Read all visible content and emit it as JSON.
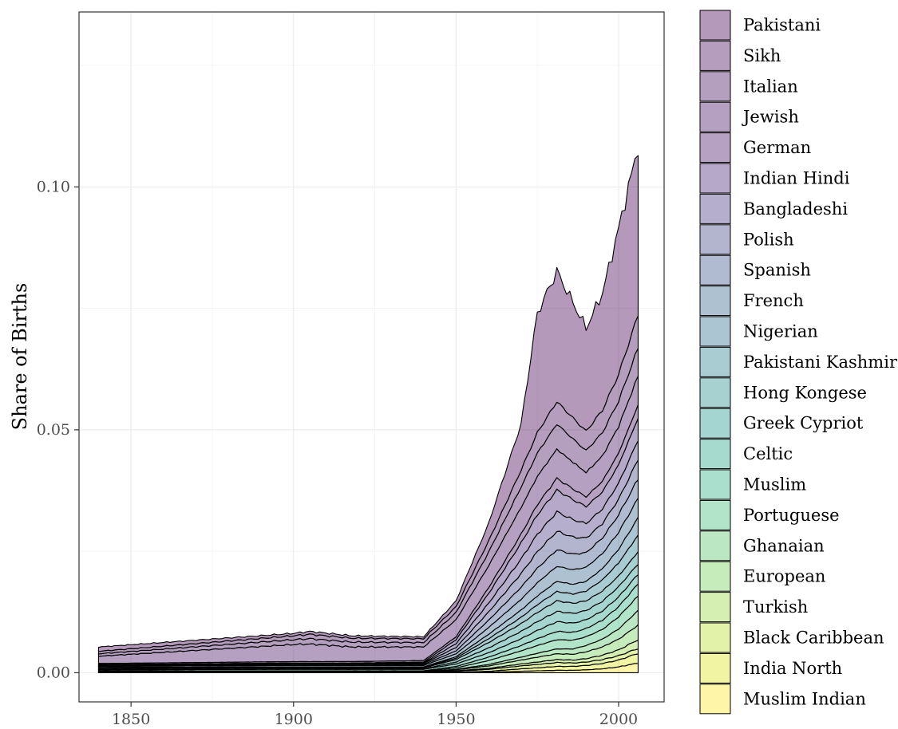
{
  "chart_data": {
    "type": "area",
    "stacked": true,
    "title": "",
    "xlabel": "",
    "ylabel": "Share of Births",
    "xlim": [
      1834,
      2014
    ],
    "ylim": [
      -0.006,
      0.136
    ],
    "x_ticks": [
      1850,
      1900,
      1950,
      2000
    ],
    "y_ticks": [
      0.0,
      0.05,
      0.1
    ],
    "y_tick_labels": [
      "0.00",
      "0.05",
      "0.10"
    ],
    "grid": true,
    "legend_position": "right",
    "key_years": [
      1840,
      1900,
      1905,
      1918,
      1940,
      1950,
      1960,
      1970,
      1975,
      1981,
      1986,
      1990,
      1995,
      2000,
      2006
    ],
    "series": [
      {
        "name": "Muslim Indian",
        "color": "#FDE725",
        "values": [
          0,
          0,
          0,
          0,
          0,
          0,
          0.0001,
          0.0003,
          0.0004,
          0.0005,
          0.0005,
          0.0006,
          0.0008,
          0.0012,
          0.002
        ]
      },
      {
        "name": "India North",
        "color": "#DCE319",
        "values": [
          0,
          0,
          0,
          0,
          0,
          0.0001,
          0.0002,
          0.0005,
          0.0006,
          0.0008,
          0.0008,
          0.0009,
          0.0011,
          0.0014,
          0.002
        ]
      },
      {
        "name": "Black Caribbean",
        "color": "#B8DE29",
        "values": [
          0.0001,
          0.0001,
          0.0001,
          0.0001,
          0.0001,
          0.0002,
          0.0004,
          0.0006,
          0.0007,
          0.0008,
          0.0007,
          0.0007,
          0.0008,
          0.0009,
          0.001
        ]
      },
      {
        "name": "Turkish",
        "color": "#95D840",
        "values": [
          0,
          0,
          0,
          0,
          0,
          0.0001,
          0.0002,
          0.0004,
          0.0005,
          0.0006,
          0.0006,
          0.0007,
          0.0009,
          0.0012,
          0.0018
        ]
      },
      {
        "name": "European",
        "color": "#73D055",
        "values": [
          0.0001,
          0.0001,
          0.0001,
          0.0001,
          0.0001,
          0.0002,
          0.0005,
          0.0008,
          0.001,
          0.0012,
          0.0012,
          0.0014,
          0.0017,
          0.0022,
          0.003
        ]
      },
      {
        "name": "Ghanaian",
        "color": "#55C667",
        "values": [
          0,
          0,
          0,
          0,
          0,
          0.0001,
          0.0003,
          0.0006,
          0.0008,
          0.001,
          0.0011,
          0.0013,
          0.0016,
          0.0021,
          0.003
        ]
      },
      {
        "name": "Portuguese",
        "color": "#3CBB75",
        "values": [
          0.0001,
          0.0001,
          0.0001,
          0.0001,
          0.0001,
          0.0003,
          0.0008,
          0.0013,
          0.0016,
          0.0019,
          0.0018,
          0.0018,
          0.002,
          0.0025,
          0.003
        ]
      },
      {
        "name": "Muslim",
        "color": "#29AF7F",
        "values": [
          0.0001,
          0.0001,
          0.0001,
          0.0001,
          0.0001,
          0.0003,
          0.0007,
          0.0011,
          0.0014,
          0.0017,
          0.0016,
          0.0017,
          0.0019,
          0.0021,
          0.0025
        ]
      },
      {
        "name": "Celtic",
        "color": "#20A387",
        "values": [
          0.0002,
          0.0003,
          0.0003,
          0.0003,
          0.0003,
          0.0005,
          0.0009,
          0.0014,
          0.0017,
          0.002,
          0.0019,
          0.0018,
          0.0019,
          0.002,
          0.002
        ]
      },
      {
        "name": "Greek Cypriot",
        "color": "#1F968B",
        "values": [
          0.0001,
          0.0001,
          0.0001,
          0.0001,
          0.0001,
          0.0004,
          0.001,
          0.0015,
          0.0018,
          0.0021,
          0.002,
          0.0019,
          0.002,
          0.0021,
          0.0021
        ]
      },
      {
        "name": "Hong Kongese",
        "color": "#238A8D",
        "values": [
          0.0002,
          0.0002,
          0.0002,
          0.0002,
          0.0002,
          0.0005,
          0.0011,
          0.0016,
          0.0019,
          0.0022,
          0.0021,
          0.002,
          0.0021,
          0.0022,
          0.0025
        ]
      },
      {
        "name": "Pakistani Kashmir",
        "color": "#287D8E",
        "values": [
          0.0001,
          0.0001,
          0.0001,
          0.0001,
          0.0001,
          0.0003,
          0.0008,
          0.0013,
          0.0016,
          0.0019,
          0.0019,
          0.002,
          0.0023,
          0.0027,
          0.0034
        ]
      },
      {
        "name": "Nigerian",
        "color": "#2D708E",
        "values": [
          0.0001,
          0.0001,
          0.0001,
          0.0001,
          0.0001,
          0.0003,
          0.0009,
          0.0015,
          0.0018,
          0.0021,
          0.002,
          0.002,
          0.0023,
          0.0028,
          0.0036
        ]
      },
      {
        "name": "French",
        "color": "#33638D",
        "values": [
          0.0002,
          0.0003,
          0.0003,
          0.0003,
          0.0003,
          0.0006,
          0.0014,
          0.0022,
          0.0027,
          0.0031,
          0.003,
          0.0029,
          0.0031,
          0.0035,
          0.004
        ]
      },
      {
        "name": "Spanish",
        "color": "#39568C",
        "values": [
          0.0001,
          0.0002,
          0.0002,
          0.0002,
          0.0002,
          0.0006,
          0.0015,
          0.0025,
          0.003,
          0.0034,
          0.0032,
          0.003,
          0.0032,
          0.0036,
          0.004
        ]
      },
      {
        "name": "Polish",
        "color": "#404688",
        "values": [
          0.0001,
          0.0001,
          0.0001,
          0.0001,
          0.0002,
          0.0007,
          0.0017,
          0.0028,
          0.0034,
          0.0038,
          0.0035,
          0.003,
          0.003,
          0.0032,
          0.004
        ]
      },
      {
        "name": "Bangladeshi",
        "color": "#453781",
        "values": [
          0.0001,
          0.0001,
          0.0001,
          0.0001,
          0.0001,
          0.0008,
          0.0018,
          0.003,
          0.0036,
          0.004,
          0.0036,
          0.003,
          0.003,
          0.0033,
          0.004
        ]
      },
      {
        "name": "Indian Hindi",
        "color": "#482677",
        "values": [
          0.0001,
          0.0001,
          0.0001,
          0.0001,
          0.0002,
          0.0008,
          0.002,
          0.0033,
          0.004,
          0.0045,
          0.0041,
          0.0035,
          0.0035,
          0.0038,
          0.0045
        ]
      },
      {
        "name": "German",
        "color": "#481567",
        "values": [
          0.0002,
          0.0003,
          0.0003,
          0.0003,
          0.0003,
          0.0006,
          0.0012,
          0.0018,
          0.0021,
          0.0024,
          0.0022,
          0.002,
          0.0022,
          0.0024,
          0.0027
        ]
      },
      {
        "name": "Jewish",
        "color": "#471164",
        "values": [
          0.0015,
          0.0035,
          0.0036,
          0.003,
          0.0028,
          0.0035,
          0.0045,
          0.0055,
          0.0058,
          0.006,
          0.0055,
          0.005,
          0.0052,
          0.0055,
          0.006
        ]
      },
      {
        "name": "Italian",
        "color": "#460E5F",
        "values": [
          0.0005,
          0.001,
          0.0011,
          0.001,
          0.0009,
          0.0015,
          0.0028,
          0.0042,
          0.0048,
          0.0052,
          0.0048,
          0.0045,
          0.0048,
          0.0052,
          0.0058
        ]
      },
      {
        "name": "Sikh",
        "color": "#450A59",
        "values": [
          0.0005,
          0.0008,
          0.0009,
          0.0008,
          0.0008,
          0.0012,
          0.0023,
          0.0035,
          0.0042,
          0.0046,
          0.0043,
          0.004,
          0.0046,
          0.0055,
          0.0068
        ]
      },
      {
        "name": "Pakistani",
        "color": "#440154",
        "values": [
          0.0009,
          0.0005,
          0.0006,
          0.0005,
          0.0004,
          0.0012,
          0.0036,
          0.0095,
          0.0246,
          0.0268,
          0.0237,
          0.0212,
          0.0241,
          0.03,
          0.0346
        ]
      }
    ]
  }
}
